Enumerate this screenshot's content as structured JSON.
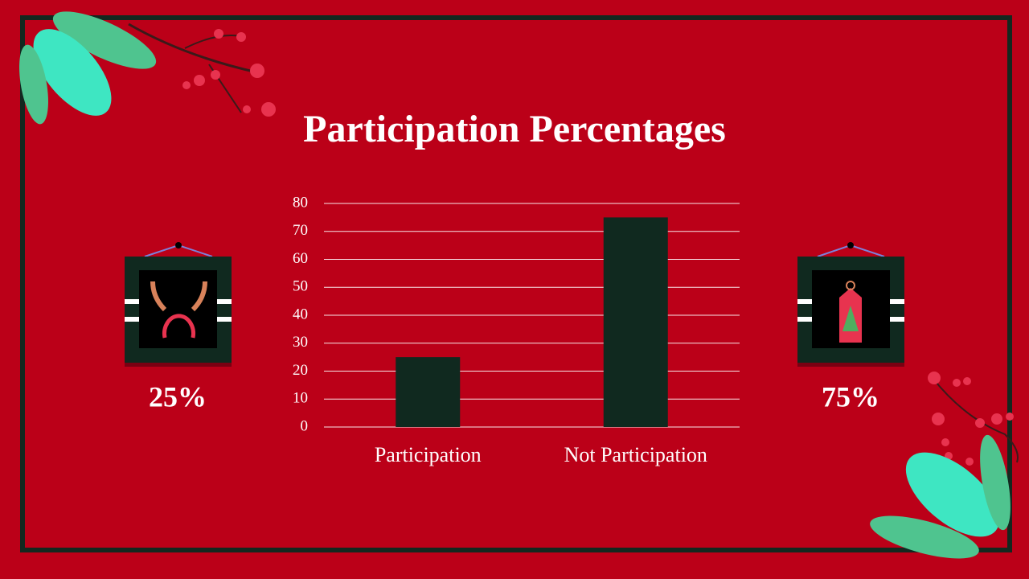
{
  "chart_data": {
    "type": "bar",
    "title": "Participation Percentages",
    "categories": [
      "Participation",
      "Not Participation"
    ],
    "values": [
      25,
      75
    ],
    "value_labels": [
      "25%",
      "75%"
    ],
    "color": "#10291f",
    "ylim": [
      0,
      80
    ],
    "yticks": [
      0,
      10,
      20,
      30,
      40,
      50,
      60,
      70,
      80
    ],
    "grid": true
  }
}
